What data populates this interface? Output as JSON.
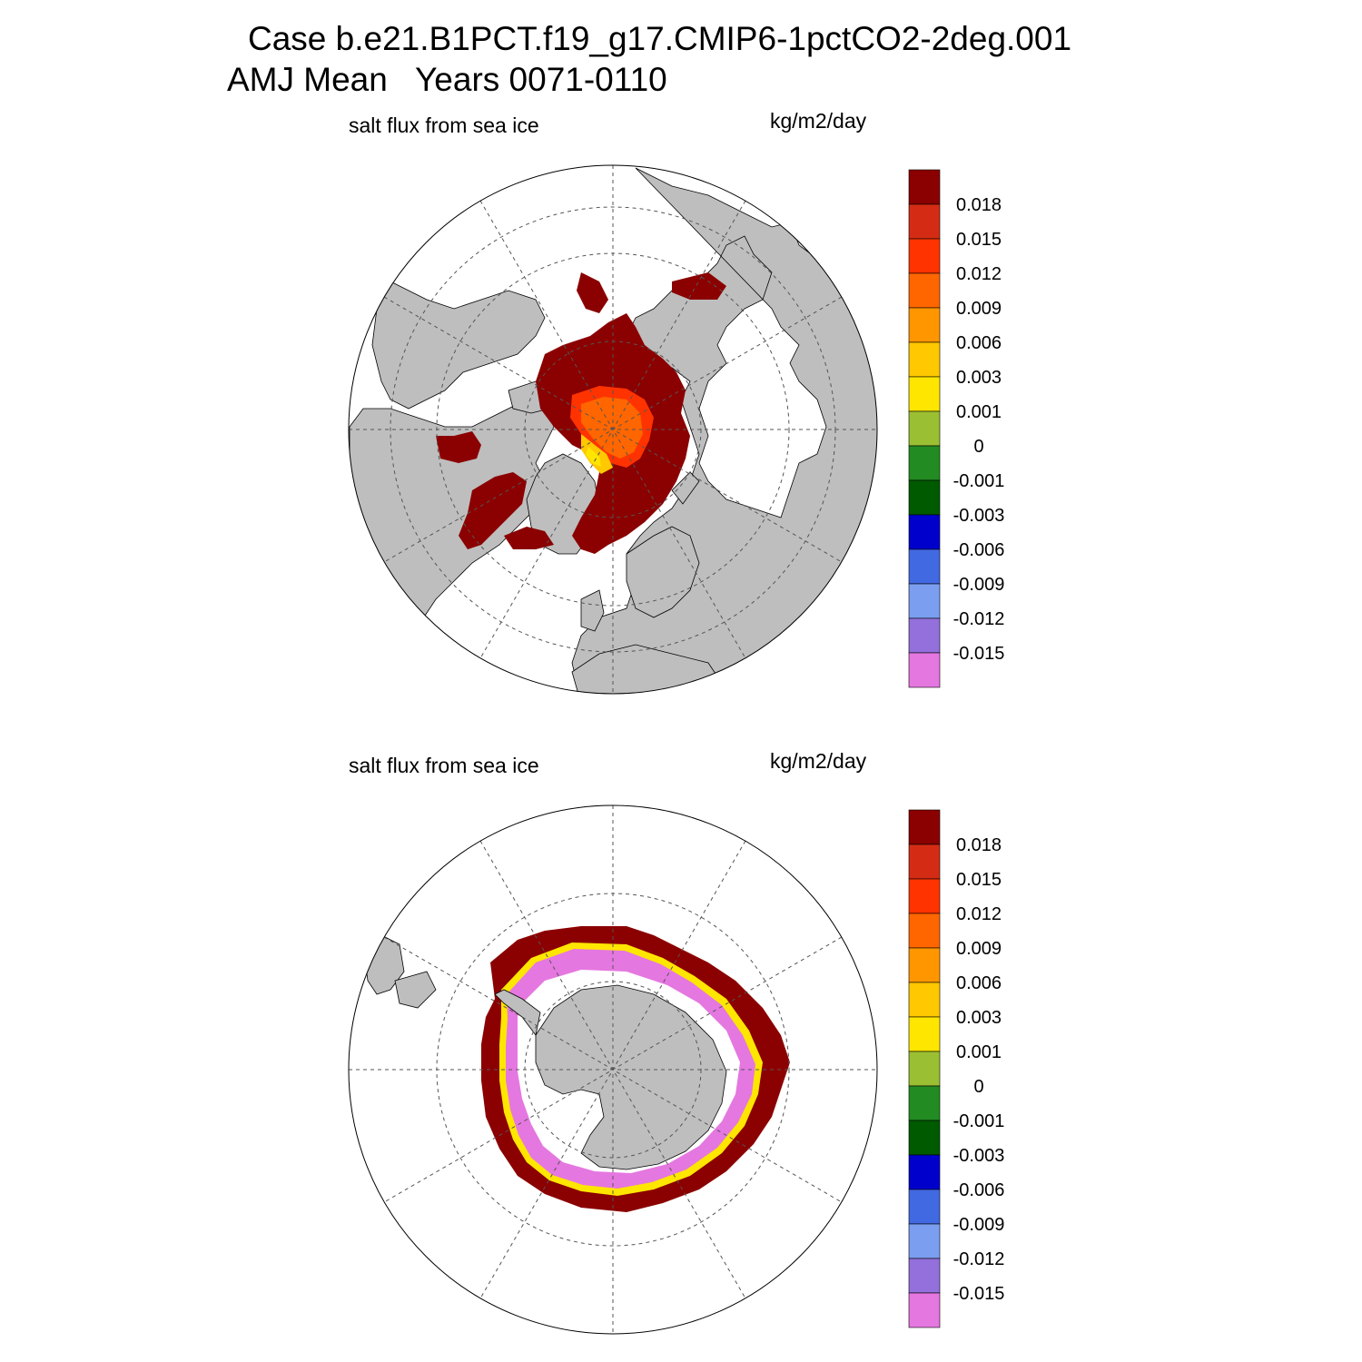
{
  "title": {
    "line1": "Case b.e21.B1PCT.f19_g17.CMIP6-1pctCO2-2deg.001",
    "line2": "AMJ Mean   Years 0071-0110"
  },
  "colors": {
    "land": "#bebebe",
    "ocean": "#ffffff",
    "grid": "#555555"
  },
  "colorbar": {
    "colors": [
      "#8b0000",
      "#d42c14",
      "#ff3300",
      "#ff6600",
      "#ff9600",
      "#ffc800",
      "#ffe600",
      "#9bbf32",
      "#228b22",
      "#005a00",
      "#0000cd",
      "#4169e1",
      "#7b9ef0",
      "#9370db",
      "#e577e0"
    ],
    "labels": [
      "0.018",
      "0.015",
      "0.012",
      "0.009",
      "0.006",
      "0.003",
      "0.001",
      "0",
      "-0.001",
      "-0.003",
      "-0.006",
      "-0.009",
      "-0.012",
      "-0.015"
    ]
  },
  "panels": [
    {
      "hemisphere": "north",
      "left_label": "salt flux from sea ice",
      "right_label": "kg/m2/day"
    },
    {
      "hemisphere": "south",
      "left_label": "salt flux from sea ice",
      "right_label": "kg/m2/day"
    }
  ]
}
